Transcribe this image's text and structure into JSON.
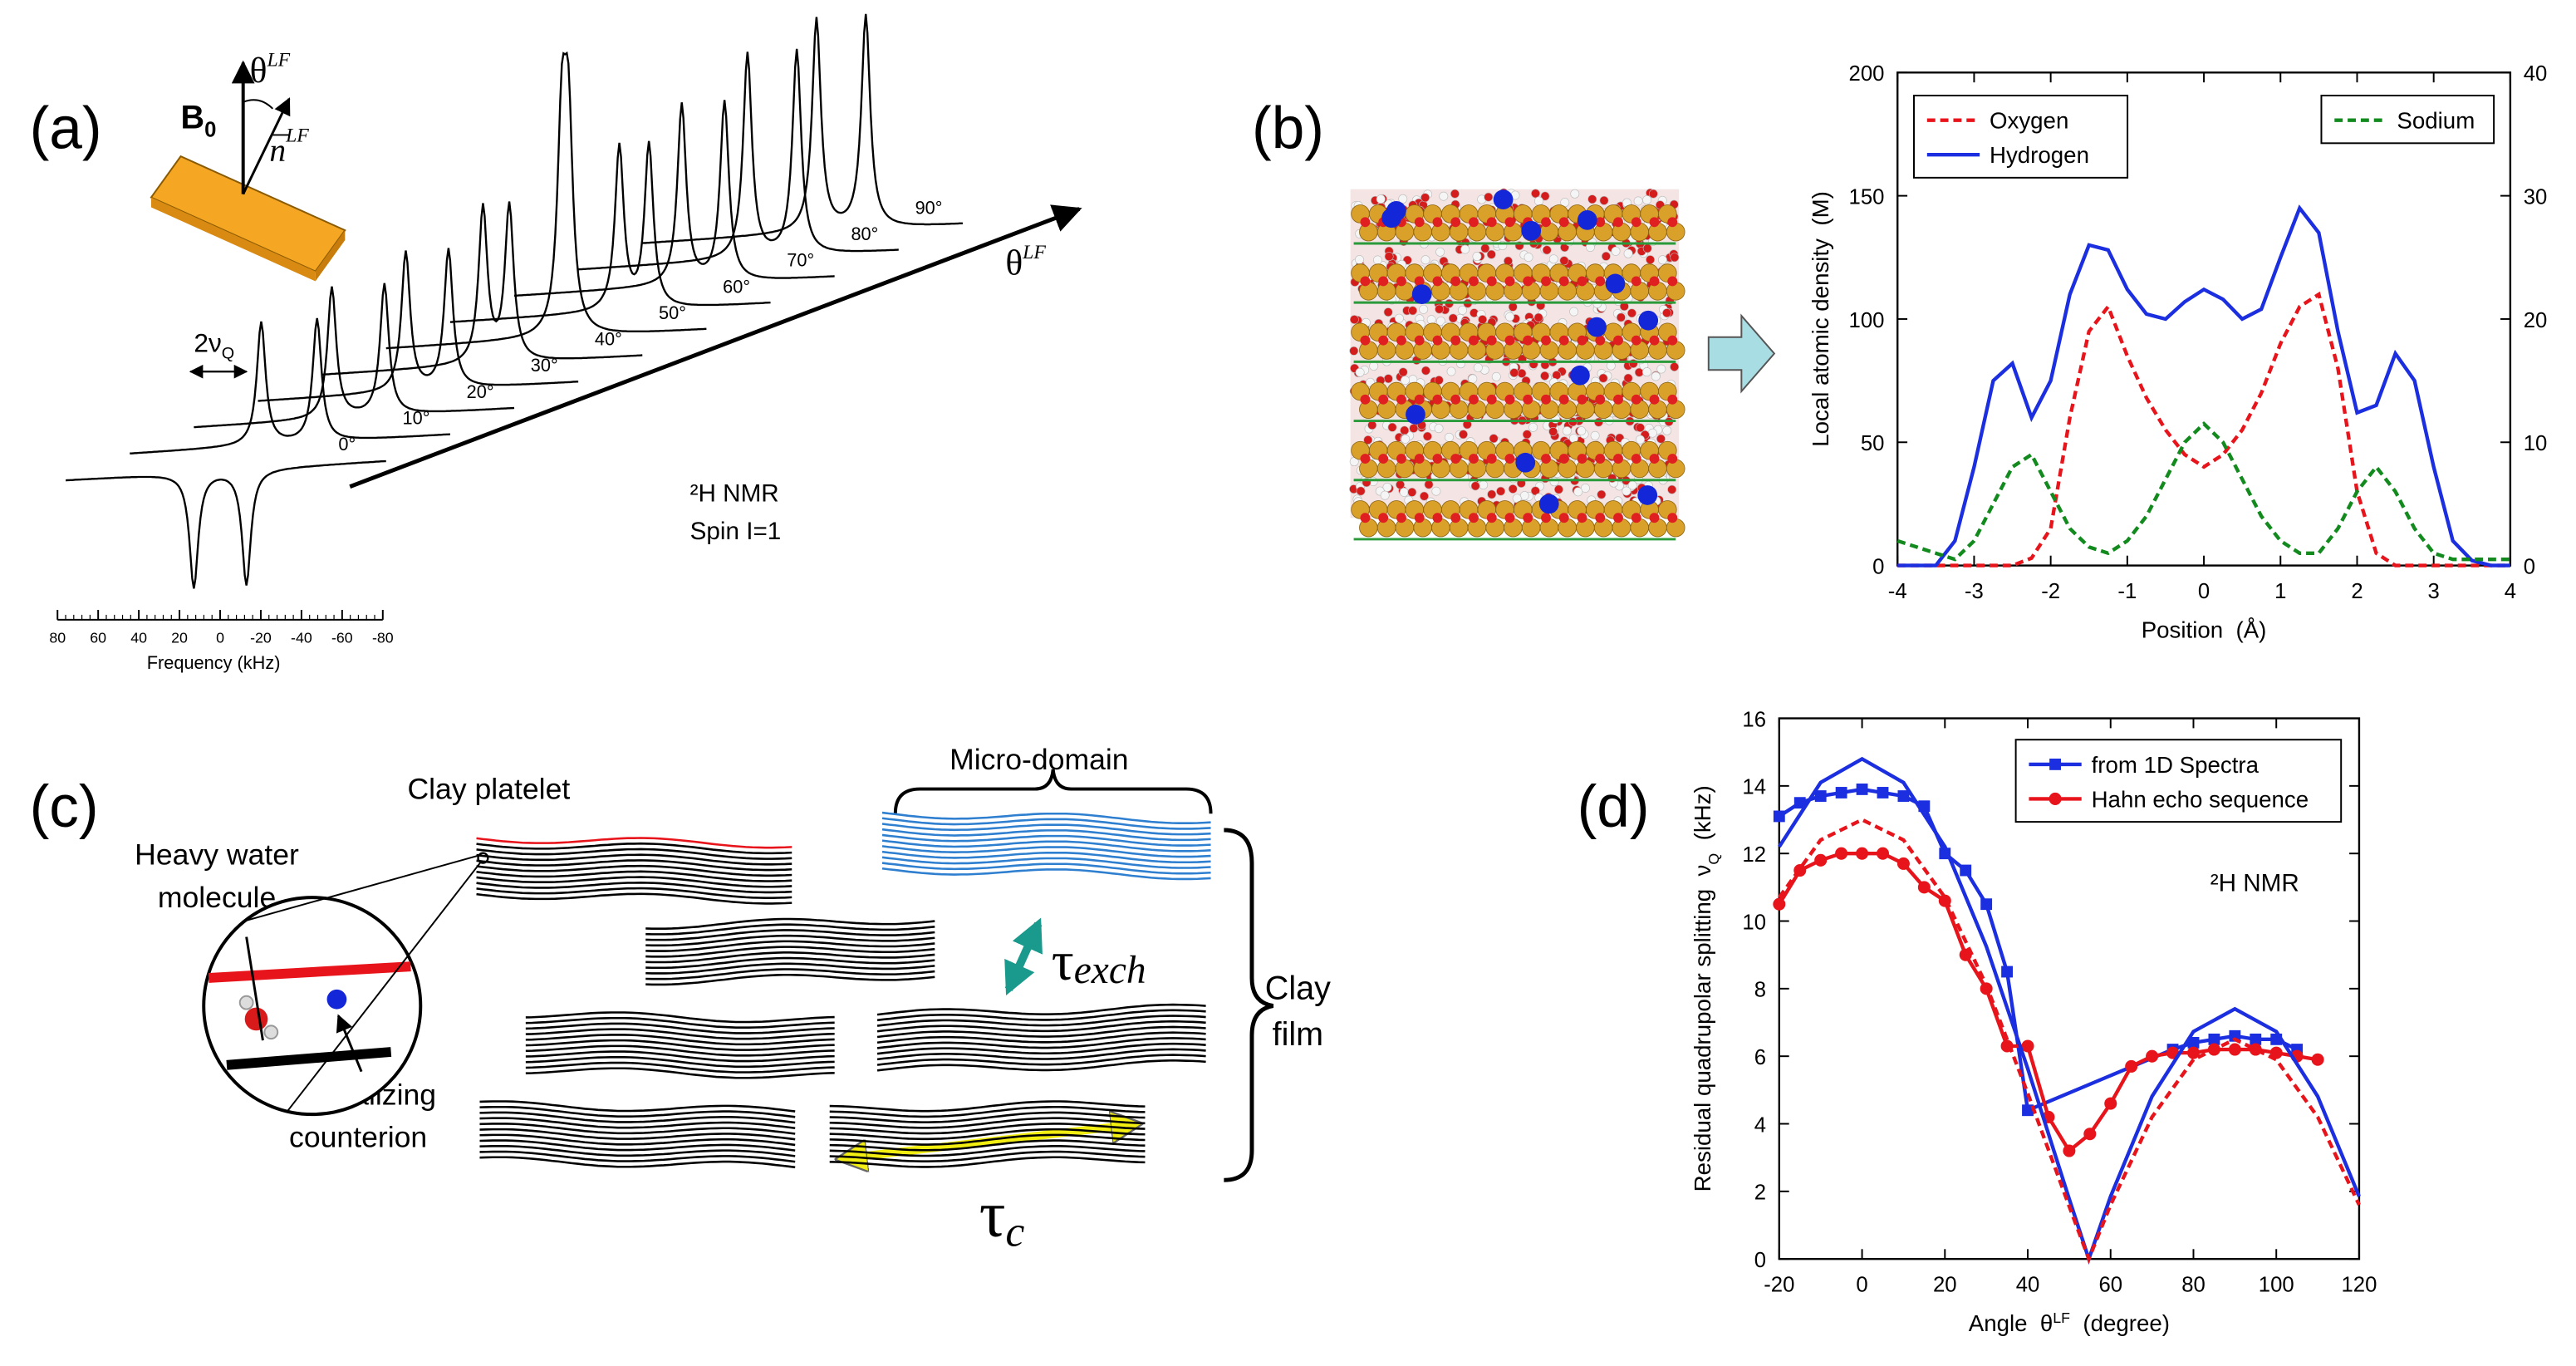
{
  "panel_a": {
    "label": "(a)",
    "b0": {
      "symbol": "B",
      "subscript": "0"
    },
    "theta_top": {
      "symbol": "θ",
      "superscript": "LF"
    },
    "normal": {
      "symbol": "n",
      "superscript": "LF"
    },
    "split": {
      "symbol": "2ν",
      "subscript": "Q"
    },
    "angles": [
      "0°",
      "10°",
      "20°",
      "30°",
      "40°",
      "50°",
      "60°",
      "70°",
      "80°",
      "90°"
    ],
    "theta_axis": {
      "symbol": "θ",
      "superscript": "LF"
    },
    "nucleus": "²H NMR",
    "spin": "Spin I=1",
    "frequency_ticks": [
      80,
      60,
      40,
      20,
      0,
      -20,
      -40,
      -60,
      -80
    ],
    "frequency_label": "Frequency (kHz)"
  },
  "panel_b": {
    "label": "(b)"
  },
  "panel_c": {
    "label": "(c)",
    "clay_platelet": "Clay platelet",
    "micro_domain": "Micro-domain",
    "heavy_water": [
      "Heavy water",
      "molecule"
    ],
    "counterion": [
      "Neutralizing",
      "counterion"
    ],
    "clay_film": [
      "Clay",
      "film"
    ],
    "tau_exch": {
      "symbol": "τ",
      "subscript": "exch"
    },
    "tau_c": {
      "symbol": "τ",
      "subscript": "c"
    }
  },
  "panel_d": {
    "label": "(d)"
  },
  "chart_data": [
    {
      "type": "line",
      "xlabel": [
        "Position  (Å)"
      ],
      "ylabel": [
        "Local atomic density  (M)"
      ],
      "x": [
        -4,
        -3.75,
        -3.5,
        -3.25,
        -3,
        -2.75,
        -2.5,
        -2.25,
        -2,
        -1.75,
        -1.5,
        -1.25,
        -1,
        -0.75,
        -0.5,
        -0.25,
        0,
        0.25,
        0.5,
        0.75,
        1,
        1.25,
        1.5,
        1.75,
        2,
        2.25,
        2.5,
        2.75,
        3,
        3.25,
        3.5,
        3.75,
        4
      ],
      "xlim": [
        -4,
        4
      ],
      "xticks": [
        -4,
        -3,
        -2,
        -1,
        0,
        1,
        2,
        3,
        4
      ],
      "ylim": [
        0,
        200
      ],
      "yticks": [
        0,
        50,
        100,
        150,
        200
      ],
      "y2lim": [
        0,
        40
      ],
      "y2ticks": [
        0,
        10,
        20,
        30,
        40
      ],
      "series": [
        {
          "name": "Oxygen",
          "color": "#e8141b",
          "dash": true,
          "values": [
            0,
            0,
            0,
            0,
            0,
            0,
            0,
            3,
            15,
            60,
            95,
            105,
            85,
            68,
            55,
            45,
            40,
            45,
            55,
            70,
            90,
            105,
            110,
            80,
            30,
            5,
            0,
            0,
            0,
            0,
            0,
            0,
            0
          ]
        },
        {
          "name": "Hydrogen",
          "color": "#1b2ee0",
          "values": [
            0,
            0,
            0,
            10,
            40,
            75,
            82,
            60,
            75,
            110,
            130,
            128,
            112,
            102,
            100,
            107,
            112,
            108,
            100,
            104,
            125,
            145,
            135,
            95,
            62,
            65,
            86,
            75,
            40,
            10,
            2,
            0,
            0
          ]
        },
        {
          "name": "Sodium",
          "color": "#128a1e",
          "dash": true,
          "axis": "y2",
          "values": [
            2,
            1.5,
            1,
            0.5,
            2,
            5,
            8,
            9,
            6,
            3,
            1.5,
            1,
            2,
            4,
            7,
            10,
            11.5,
            10,
            7,
            4,
            2,
            1,
            1,
            3,
            6,
            8,
            6,
            3,
            1,
            0.5,
            0.5,
            0.5,
            0.5
          ]
        }
      ]
    },
    {
      "type": "line",
      "xlabel": [
        "Angle  θ",
        "LF",
        "  (degree)"
      ],
      "ylabel": [
        "Residual quadrupolar splitting  ν",
        "Q",
        "  (kHz)"
      ],
      "annotation": "²H NMR",
      "xlim": [
        -20,
        120
      ],
      "xticks": [
        -20,
        0,
        20,
        40,
        60,
        80,
        100,
        120
      ],
      "ylim": [
        0,
        16
      ],
      "yticks": [
        0,
        2,
        4,
        6,
        8,
        10,
        12,
        14,
        16
      ],
      "series": [
        {
          "name": "from 1D Spectra",
          "color": "#1b2ee0",
          "marker": "square",
          "x": [
            -20,
            -15,
            -10,
            -5,
            0,
            5,
            10,
            15,
            20,
            25,
            30,
            35,
            40,
            75,
            80,
            85,
            90,
            95,
            100,
            105
          ],
          "values": [
            13.1,
            13.5,
            13.7,
            13.8,
            13.9,
            13.8,
            13.7,
            13.4,
            12,
            11.5,
            10.5,
            8.5,
            4.4,
            6.2,
            6.4,
            6.5,
            6.6,
            6.5,
            6.5,
            6.2
          ]
        },
        {
          "name": "Hahn echo sequence",
          "color": "#e8141b",
          "marker": "circle",
          "x": [
            -20,
            -15,
            -10,
            -5,
            0,
            5,
            10,
            15,
            20,
            25,
            30,
            35,
            40,
            45,
            50,
            55,
            60,
            65,
            70,
            75,
            80,
            85,
            90,
            95,
            100,
            105,
            110
          ],
          "values": [
            10.5,
            11.5,
            11.8,
            12,
            12,
            12,
            11.7,
            11,
            10.6,
            9,
            8,
            6.3,
            6.3,
            4.2,
            3.2,
            3.7,
            4.6,
            5.7,
            6,
            6.1,
            6.1,
            6.2,
            6.2,
            6.2,
            6.1,
            6.0,
            5.9
          ]
        },
        {
          "color": "#1b2ee0",
          "x": [
            -20,
            -10,
            0,
            10,
            20,
            30,
            40,
            50,
            54.74,
            60,
            70,
            80,
            90,
            100,
            110,
            120
          ],
          "values": [
            12.2,
            14.1,
            14.8,
            14.1,
            12.2,
            9.25,
            5.63,
            1.78,
            0,
            1.85,
            4.81,
            6.73,
            7.4,
            6.73,
            4.81,
            1.85
          ]
        },
        {
          "color": "#e8141b",
          "dash": true,
          "x": [
            -20,
            -10,
            0,
            10,
            20,
            30,
            40,
            50,
            54.74,
            60,
            70,
            80,
            90,
            100,
            110,
            120
          ],
          "values": [
            10.7,
            12.4,
            13,
            12.4,
            10.7,
            8.1,
            4.9,
            1.56,
            0,
            1.6,
            4.2,
            5.9,
            6.5,
            5.9,
            4.2,
            1.6
          ]
        }
      ]
    }
  ]
}
